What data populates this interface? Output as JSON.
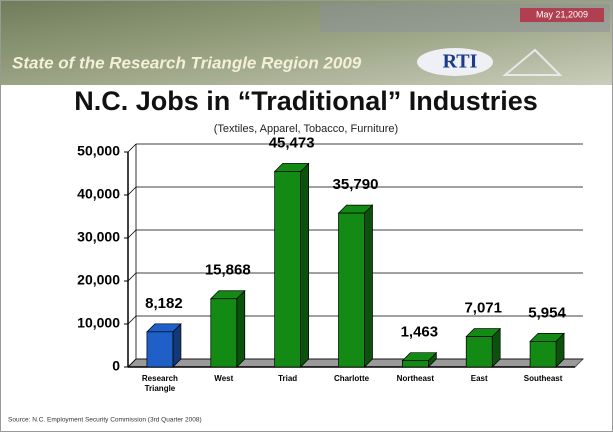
{
  "header": {
    "banner": "State of the Research Triangle Region 2009",
    "date": "May 21,2009",
    "logo": "RTI"
  },
  "chart_data": {
    "type": "bar3d",
    "title": "N.C. Jobs in “Traditional” Industries",
    "subtitle": "(Textiles, Apparel, Tobacco, Furniture)",
    "source": "Source: N.C. Employment Security Commission (3rd Quarter 2008)",
    "categories": [
      "Research Triangle",
      "West",
      "Triad",
      "Charlotte",
      "Northeast",
      "East",
      "Southeast"
    ],
    "values": [
      8182,
      15868,
      45473,
      35790,
      1463,
      7071,
      5954
    ],
    "value_labels": [
      "8,182",
      "15,868",
      "45,473",
      "35,790",
      "1,463",
      "7,071",
      "5,954"
    ],
    "colors": [
      "#1f5fc8",
      "#138a13",
      "#138a13",
      "#138a13",
      "#138a13",
      "#138a13",
      "#138a13"
    ],
    "ylim": [
      0,
      50000
    ],
    "yticks": [
      0,
      {
        "value": 10000,
        "label": "10,000"
      },
      {
        "value": 20000,
        "label": "20,000"
      },
      {
        "value": 30000,
        "label": "30,000"
      },
      {
        "value": 40000,
        "label": "40,000"
      },
      {
        "value": 50000,
        "label": "50,000"
      }
    ],
    "grid": true
  }
}
